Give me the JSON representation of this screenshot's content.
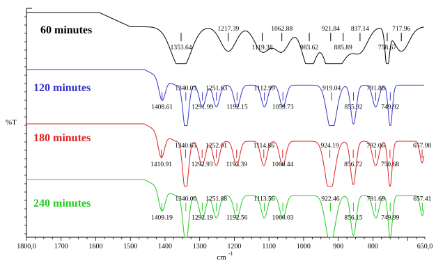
{
  "chart_data": {
    "type": "line",
    "xlim": [
      1800,
      650
    ],
    "x_ticks": [
      "1800,0",
      "1700",
      "1600",
      "1500",
      "1400",
      "1300",
      "1200",
      "1100",
      "1000",
      "900",
      "800",
      "650,0"
    ],
    "xlabel": "cm",
    "xlabel_exp": "-1",
    "ylabel": "%T",
    "grid": false,
    "legend": "labels-inline",
    "series": [
      {
        "name": "60 minutes",
        "color": "#000000",
        "peaks": [
          {
            "x": 1353.64,
            "label": "1353.64"
          },
          {
            "x": 1217.39,
            "label": "1217.39"
          },
          {
            "x": 1119.38,
            "label": "1119.38"
          },
          {
            "x": 1062.88,
            "label": "1062.88"
          },
          {
            "x": 983.62,
            "label": "983.62"
          },
          {
            "x": 921.84,
            "label": "921.84"
          },
          {
            "x": 885.89,
            "label": "885.89"
          },
          {
            "x": 837.14,
            "label": "837.14"
          },
          {
            "x": 758.67,
            "label": "758.67"
          },
          {
            "x": 717.96,
            "label": "717.96"
          }
        ]
      },
      {
        "name": "120 minutes",
        "color": "#3333cc",
        "peaks": [
          {
            "x": 1408.61,
            "label": "1408.61"
          },
          {
            "x": 1340.03,
            "label": "1340.03"
          },
          {
            "x": 1291.99,
            "label": "1291.99"
          },
          {
            "x": 1251.63,
            "label": "1251.63"
          },
          {
            "x": 1192.15,
            "label": "1192.15"
          },
          {
            "x": 1112.99,
            "label": "1112.99"
          },
          {
            "x": 1059.73,
            "label": "1059.73"
          },
          {
            "x": 919.04,
            "label": "919.04"
          },
          {
            "x": 855.92,
            "label": "855.92"
          },
          {
            "x": 791.86,
            "label": "791.86"
          },
          {
            "x": 749.92,
            "label": "749.92"
          }
        ]
      },
      {
        "name": "180 minutes",
        "color": "#dd2222",
        "peaks": [
          {
            "x": 1410.91,
            "label": "1410.91"
          },
          {
            "x": 1340.65,
            "label": "1340.65"
          },
          {
            "x": 1292.93,
            "label": "1292.93"
          },
          {
            "x": 1252.01,
            "label": "1252.01"
          },
          {
            "x": 1193.39,
            "label": "1193.39"
          },
          {
            "x": 1114.86,
            "label": "1114.86"
          },
          {
            "x": 1060.44,
            "label": "1060.44"
          },
          {
            "x": 924.19,
            "label": "924.19"
          },
          {
            "x": 856.72,
            "label": "856.72"
          },
          {
            "x": 792.06,
            "label": "792.06"
          },
          {
            "x": 750.68,
            "label": "750.68"
          },
          {
            "x": 657.98,
            "label": "657.98"
          }
        ]
      },
      {
        "name": "240 minutes",
        "color": "#22cc22",
        "peaks": [
          {
            "x": 1409.19,
            "label": "1409.19"
          },
          {
            "x": 1340.0,
            "label": "1340.00"
          },
          {
            "x": 1292.19,
            "label": "1292.19"
          },
          {
            "x": 1251.88,
            "label": "1251.88"
          },
          {
            "x": 1192.56,
            "label": "1192.56"
          },
          {
            "x": 1113.56,
            "label": "1113.56"
          },
          {
            "x": 1060.03,
            "label": "1060.03"
          },
          {
            "x": 922.46,
            "label": "922.46"
          },
          {
            "x": 856.15,
            "label": "856.15"
          },
          {
            "x": 791.69,
            "label": "791.69"
          },
          {
            "x": 749.99,
            "label": "749.99"
          },
          {
            "x": 657.41,
            "label": "657.41"
          }
        ]
      }
    ]
  }
}
